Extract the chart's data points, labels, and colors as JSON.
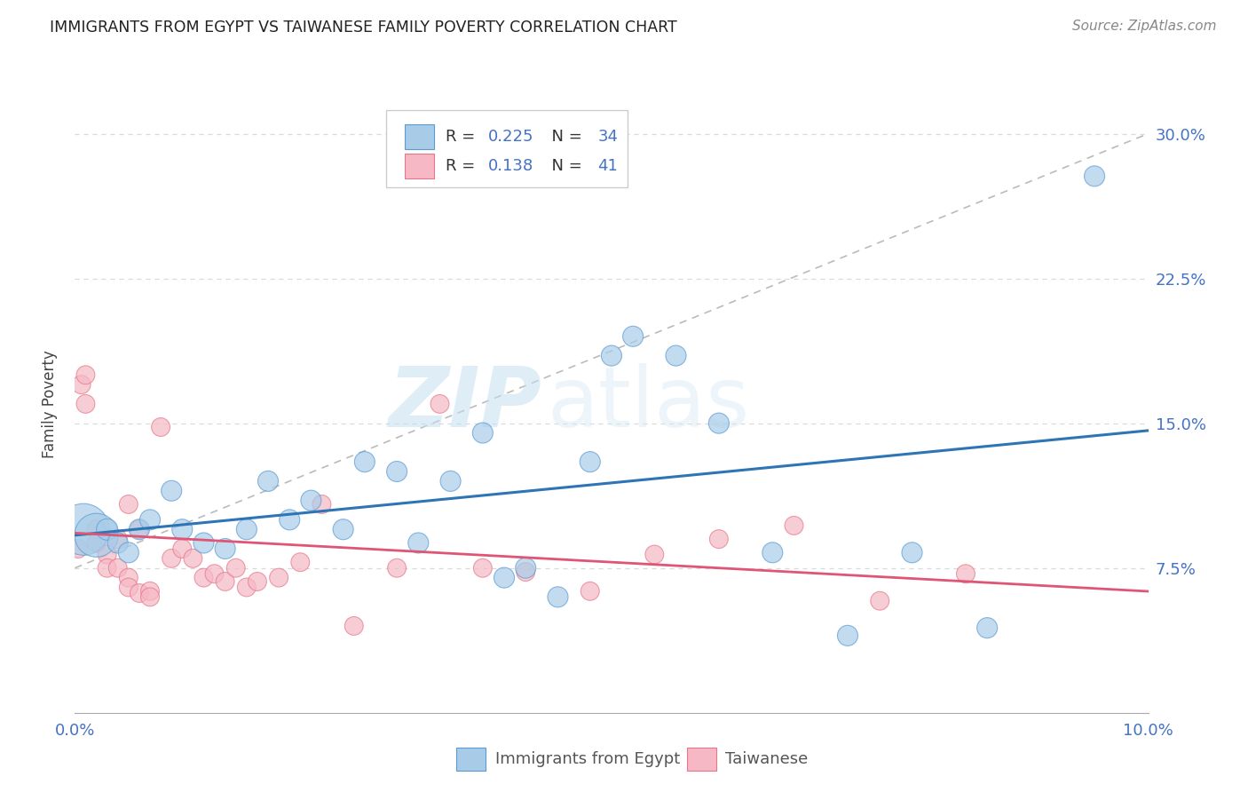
{
  "title": "IMMIGRANTS FROM EGYPT VS TAIWANESE FAMILY POVERTY CORRELATION CHART",
  "source": "Source: ZipAtlas.com",
  "ylabel": "Family Poverty",
  "xlim": [
    0.0,
    0.1
  ],
  "ylim": [
    0.0,
    0.32
  ],
  "xticks": [
    0.0,
    0.02,
    0.04,
    0.06,
    0.08,
    0.1
  ],
  "xtick_labels": [
    "0.0%",
    "",
    "",
    "",
    "",
    "10.0%"
  ],
  "yticks": [
    0.0,
    0.075,
    0.15,
    0.225,
    0.3
  ],
  "ytick_labels": [
    "",
    "7.5%",
    "15.0%",
    "22.5%",
    "30.0%"
  ],
  "watermark_zip": "ZIP",
  "watermark_atlas": "atlas",
  "legend1_R": "0.225",
  "legend1_N": "34",
  "legend2_R": "0.138",
  "legend2_N": "41",
  "blue_color": "#a8cce8",
  "pink_color": "#f5b8c4",
  "blue_edge_color": "#5b9bd5",
  "pink_edge_color": "#e8758a",
  "blue_line_color": "#2e75b6",
  "pink_line_color": "#e05575",
  "gray_dash_color": "#bbbbbb",
  "tick_label_color": "#4472c4",
  "grid_color": "#d9d9d9",
  "blue_scatter_x": [
    0.0008,
    0.002,
    0.003,
    0.004,
    0.005,
    0.006,
    0.007,
    0.009,
    0.01,
    0.012,
    0.014,
    0.016,
    0.018,
    0.02,
    0.022,
    0.025,
    0.027,
    0.03,
    0.032,
    0.035,
    0.038,
    0.04,
    0.042,
    0.045,
    0.048,
    0.05,
    0.052,
    0.056,
    0.06,
    0.065,
    0.072,
    0.078,
    0.085,
    0.095
  ],
  "blue_scatter_y": [
    0.095,
    0.092,
    0.095,
    0.088,
    0.083,
    0.095,
    0.1,
    0.115,
    0.095,
    0.088,
    0.085,
    0.095,
    0.12,
    0.1,
    0.11,
    0.095,
    0.13,
    0.125,
    0.088,
    0.12,
    0.145,
    0.07,
    0.075,
    0.06,
    0.13,
    0.185,
    0.195,
    0.185,
    0.15,
    0.083,
    0.04,
    0.083,
    0.044,
    0.278
  ],
  "blue_scatter_size": [
    350,
    250,
    60,
    55,
    55,
    55,
    55,
    55,
    55,
    55,
    55,
    55,
    55,
    55,
    55,
    55,
    55,
    55,
    55,
    55,
    55,
    55,
    55,
    55,
    55,
    55,
    55,
    55,
    55,
    55,
    55,
    55,
    55,
    55
  ],
  "pink_scatter_x": [
    0.0003,
    0.0006,
    0.001,
    0.001,
    0.002,
    0.002,
    0.003,
    0.003,
    0.004,
    0.004,
    0.005,
    0.005,
    0.005,
    0.006,
    0.006,
    0.007,
    0.007,
    0.008,
    0.009,
    0.01,
    0.011,
    0.012,
    0.013,
    0.014,
    0.015,
    0.016,
    0.017,
    0.019,
    0.021,
    0.023,
    0.026,
    0.03,
    0.034,
    0.038,
    0.042,
    0.048,
    0.054,
    0.06,
    0.067,
    0.075,
    0.083
  ],
  "pink_scatter_y": [
    0.085,
    0.17,
    0.175,
    0.16,
    0.095,
    0.088,
    0.082,
    0.075,
    0.09,
    0.075,
    0.108,
    0.07,
    0.065,
    0.095,
    0.062,
    0.063,
    0.06,
    0.148,
    0.08,
    0.085,
    0.08,
    0.07,
    0.072,
    0.068,
    0.075,
    0.065,
    0.068,
    0.07,
    0.078,
    0.108,
    0.045,
    0.075,
    0.16,
    0.075,
    0.073,
    0.063,
    0.082,
    0.09,
    0.097,
    0.058,
    0.072
  ],
  "pink_scatter_size": [
    45,
    45,
    45,
    45,
    45,
    45,
    45,
    45,
    45,
    45,
    45,
    45,
    45,
    45,
    45,
    45,
    45,
    45,
    45,
    45,
    45,
    45,
    45,
    45,
    45,
    45,
    45,
    45,
    45,
    45,
    45,
    45,
    45,
    45,
    45,
    45,
    45,
    45,
    45,
    45,
    45
  ]
}
